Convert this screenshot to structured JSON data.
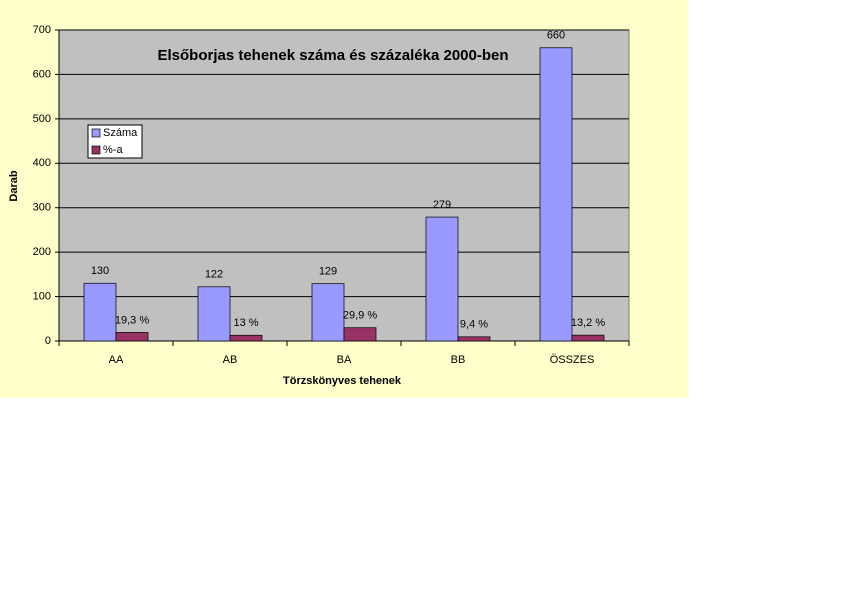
{
  "chart_data": {
    "type": "bar",
    "title": "Elsőborjas tehenek száma és százaléka 2000-ben",
    "x_label": "Törzskönyves tehenek",
    "y_label": "Darab",
    "categories": [
      "AA",
      "AB",
      "BA",
      "BB",
      "ÖSSZES"
    ],
    "series": [
      {
        "name": "Száma",
        "color": "#9999ff",
        "values": [
          130,
          122,
          129,
          279,
          660
        ]
      },
      {
        "name": "%-a",
        "color": "#993366",
        "values": [
          19.3,
          13,
          29.9,
          9.4,
          13.2
        ],
        "value_labels": [
          "19,3 %",
          "13 %",
          "29,9 %",
          "9,4 %",
          "13,2 %"
        ]
      }
    ],
    "ylim": [
      0,
      700
    ],
    "yticks": [
      0,
      100,
      200,
      300,
      400,
      500,
      600,
      700
    ],
    "grid": true,
    "legend": "upper left"
  }
}
